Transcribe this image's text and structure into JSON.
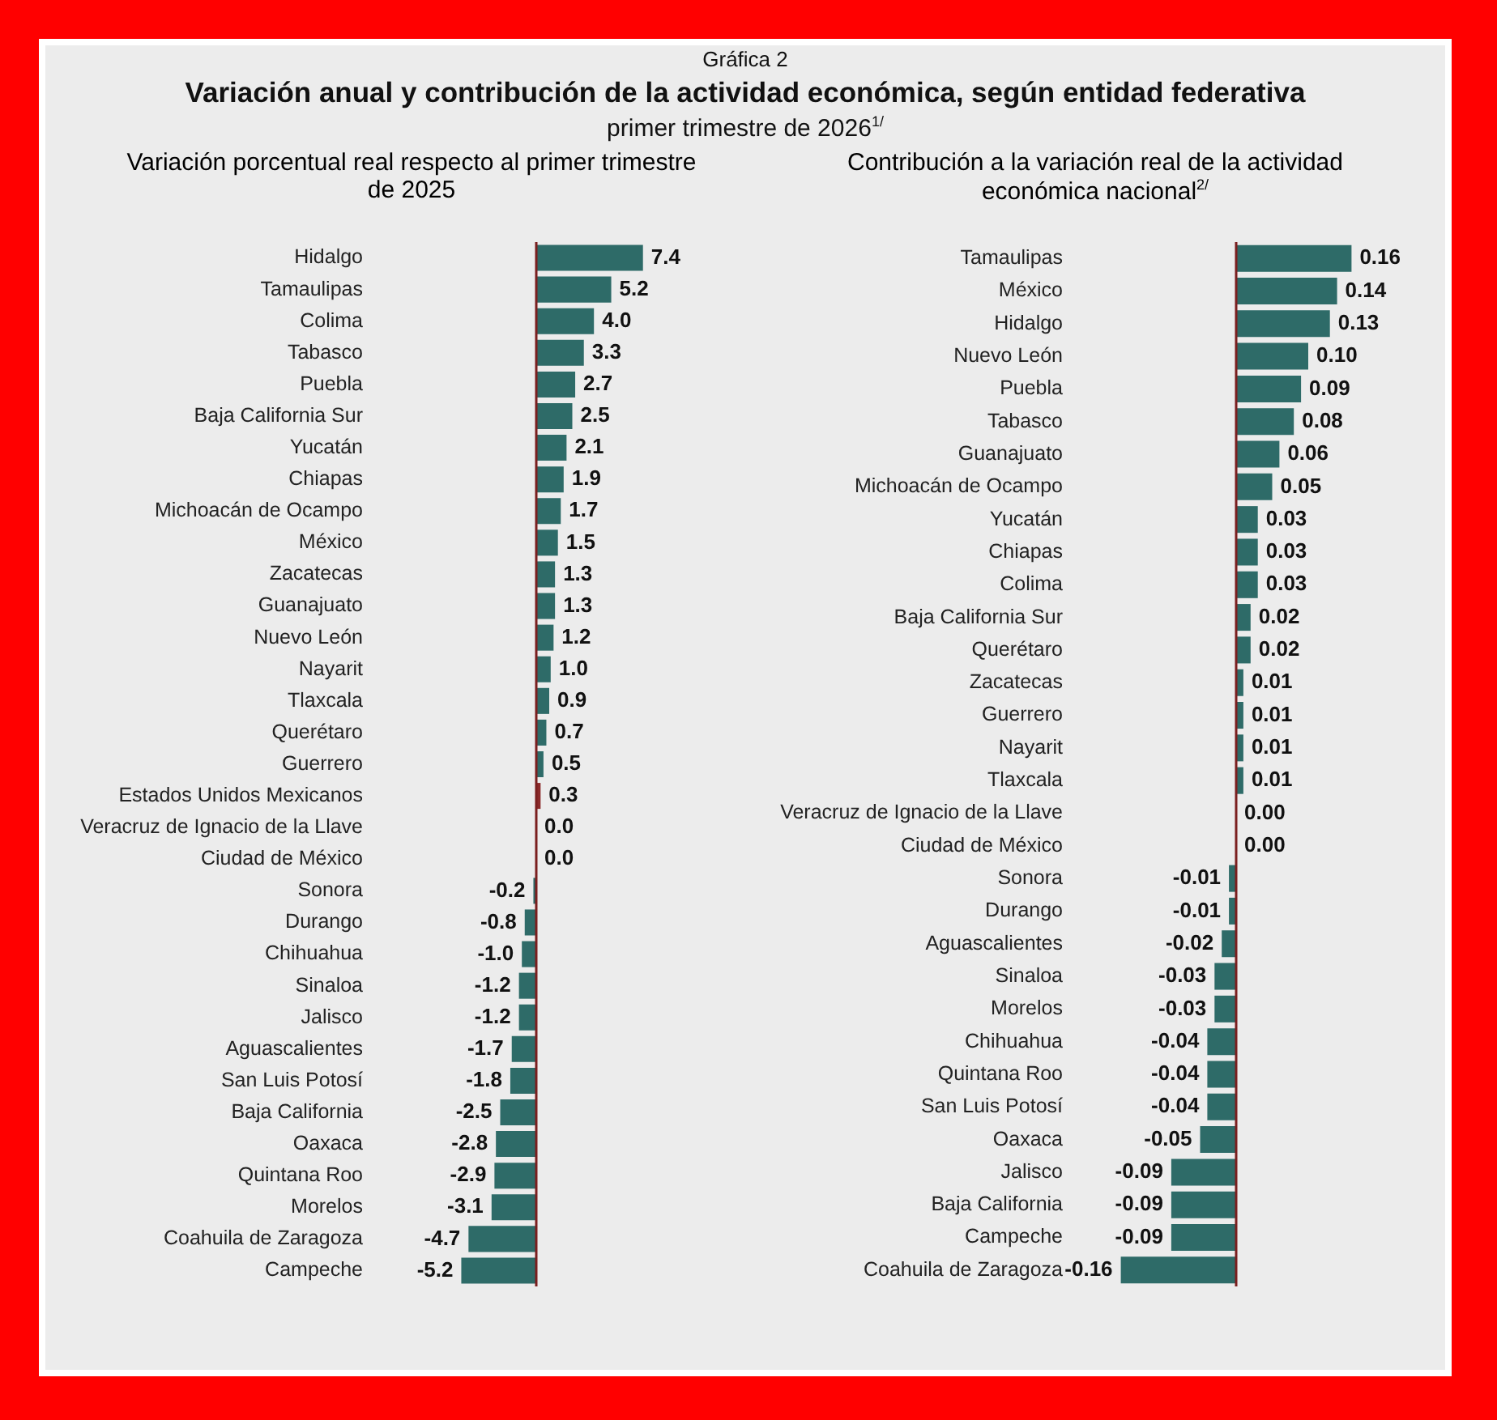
{
  "chart_data": [
    {
      "type": "bar",
      "orientation": "horizontal",
      "title": "Variación anual y contribución de la actividad económica, según entidad federativa",
      "subtitle": "primer trimestre de 2026$^{1/}$",
      "annotations": [
        "Gráfica 2"
      ],
      "xlabel": "Variación porcentual real respecto al primer trimestre de 2025",
      "tick_labels": "y",
      "categories": [
        "Hidalgo",
        "Tamaulipas",
        "Colima",
        "Tabasco",
        "Puebla",
        "Baja California Sur",
        "Yucatán",
        "Chiapas",
        "Michoacán de Ocampo",
        "México",
        "Zacatecas",
        "Guanajuato",
        "Nuevo León",
        "Nayarit",
        "Tlaxcala",
        "Querétaro",
        "Guerrero",
        "Estados Unidos Mexicanos",
        "Veracruz de Ignacio de la Llave",
        "Ciudad de México",
        "Sonora",
        "Durango",
        "Chihuahua",
        "Sinaloa",
        "Jalisco",
        "Aguascalientes",
        "San Luis Potosí",
        "Baja California",
        "Oaxaca",
        "Quintana Roo",
        "Morelos",
        "Coahuila de Zaragoza",
        "Campeche"
      ],
      "values": [
        7.4,
        5.2,
        4.0,
        3.3,
        2.7,
        2.5,
        2.1,
        1.9,
        1.7,
        1.5,
        1.3,
        1.3,
        1.2,
        1.0,
        0.9,
        0.7,
        0.5,
        0.3,
        0.0,
        0.0,
        -0.2,
        -0.8,
        -1.0,
        -1.2,
        -1.2,
        -1.7,
        -1.8,
        -2.5,
        -2.8,
        -2.9,
        -3.1,
        -4.7,
        -5.2
      ],
      "colors": [
        "#2e6b68",
        "#2e6b68",
        "#2e6b68",
        "#2e6b68",
        "#2e6b68",
        "#2e6b68",
        "#2e6b68",
        "#2e6b68",
        "#2e6b68",
        "#2e6b68",
        "#2e6b68",
        "#2e6b68",
        "#2e6b68",
        "#2e6b68",
        "#2e6b68",
        "#2e6b68",
        "#2e6b68",
        "#8b2a2a",
        "#2e6b68",
        "#2e6b68",
        "#2e6b68",
        "#2e6b68",
        "#2e6b68",
        "#2e6b68",
        "#2e6b68",
        "#2e6b68",
        "#2e6b68",
        "#2e6b68",
        "#2e6b68",
        "#2e6b68",
        "#2e6b68",
        "#2e6b68",
        "#2e6b68"
      ],
      "value_labels": [
        "7.4",
        "5.2",
        "4.0",
        "3.3",
        "2.7",
        "2.5",
        "2.1",
        "1.9",
        "1.7",
        "1.5",
        "1.3",
        "1.3",
        "1.2",
        "1.0",
        "0.9",
        "0.7",
        "0.5",
        "0.3",
        "0.0",
        "0.0",
        "-0.2",
        "-0.8",
        "-1.0",
        "-1.2",
        "-1.2",
        "-1.7",
        "-1.8",
        "-2.5",
        "-2.8",
        "-2.9",
        "-3.1",
        "-4.7",
        "-5.2"
      ],
      "ref_lines": [
        {
          "axis": "x",
          "value": 0,
          "color": "#7a1f1f"
        }
      ]
    },
    {
      "type": "bar",
      "orientation": "horizontal",
      "xlabel": "Contribución a la variación real de la actividad económica nacional$^{2/}$",
      "tick_labels": "y",
      "color": "#2e6b68",
      "categories": [
        "Tamaulipas",
        "México",
        "Hidalgo",
        "Nuevo León",
        "Puebla",
        "Tabasco",
        "Guanajuato",
        "Michoacán de Ocampo",
        "Yucatán",
        "Chiapas",
        "Colima",
        "Baja California Sur",
        "Querétaro",
        "Zacatecas",
        "Guerrero",
        "Nayarit",
        "Tlaxcala",
        "Veracruz de Ignacio de la Llave",
        "Ciudad de México",
        "Sonora",
        "Durango",
        "Aguascalientes",
        "Sinaloa",
        "Morelos",
        "Chihuahua",
        "Quintana Roo",
        "San Luis Potosí",
        "Oaxaca",
        "Jalisco",
        "Baja California",
        "Campeche",
        "Coahuila de Zaragoza"
      ],
      "values": [
        0.16,
        0.14,
        0.13,
        0.1,
        0.09,
        0.08,
        0.06,
        0.05,
        0.03,
        0.03,
        0.03,
        0.02,
        0.02,
        0.01,
        0.01,
        0.01,
        0.01,
        0.0,
        0.0,
        -0.01,
        -0.01,
        -0.02,
        -0.03,
        -0.03,
        -0.04,
        -0.04,
        -0.04,
        -0.05,
        -0.09,
        -0.09,
        -0.09,
        -0.16
      ],
      "value_labels": [
        "0.16",
        "0.14",
        "0.13",
        "0.10",
        "0.09",
        "0.08",
        "0.06",
        "0.05",
        "0.03",
        "0.03",
        "0.03",
        "0.02",
        "0.02",
        "0.01",
        "0.01",
        "0.01",
        "0.01",
        "0.00",
        "0.00",
        "-0.01",
        "-0.01",
        "-0.02",
        "-0.03",
        "-0.03",
        "-0.04",
        "-0.04",
        "-0.04",
        "-0.05",
        "-0.09",
        "-0.09",
        "-0.09",
        "-0.16"
      ],
      "ref_lines": [
        {
          "axis": "x",
          "value": 0,
          "color": "#7a1f1f"
        }
      ]
    }
  ]
}
